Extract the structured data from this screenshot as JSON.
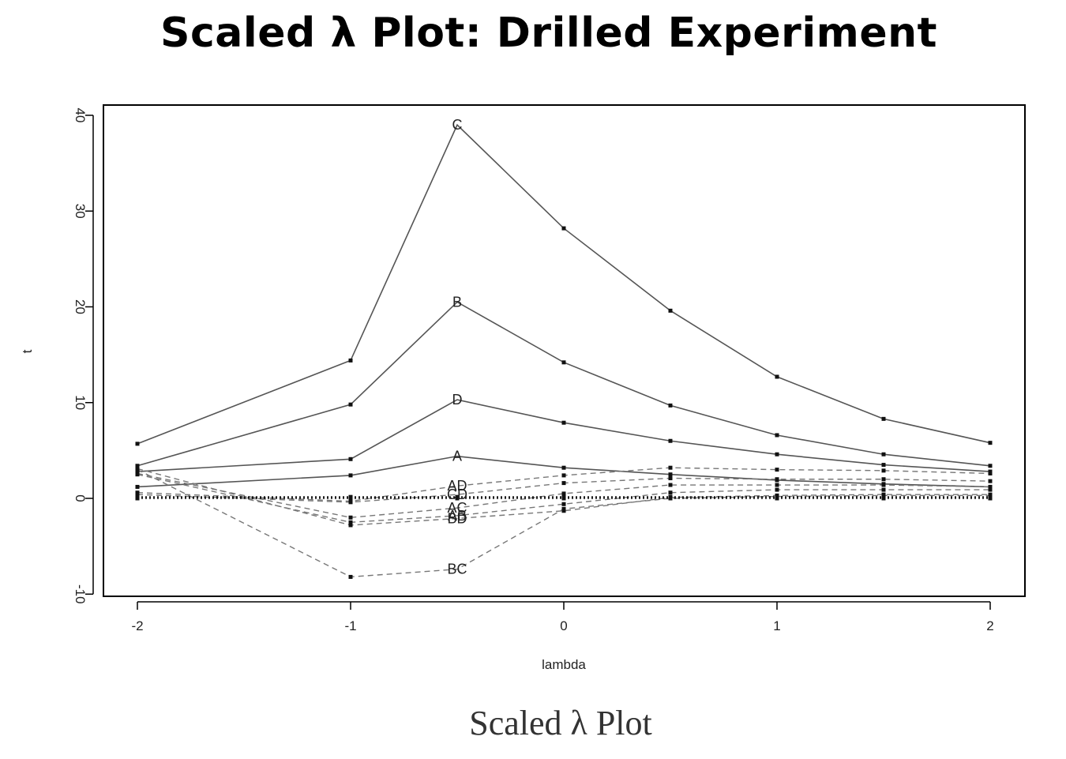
{
  "slide_title": "Scaled λ Plot: Drilled Experiment",
  "caption": "Scaled λ Plot",
  "chart_data": {
    "type": "line",
    "title": "",
    "xlabel": "lambda",
    "ylabel": "t",
    "xlim": [
      -2.15,
      2.15
    ],
    "ylim": [
      -10,
      41
    ],
    "x": [
      -2,
      -1,
      -0.5,
      0,
      0.5,
      1,
      1.5,
      2
    ],
    "x_ticks": [
      "-2",
      "-1",
      "0",
      "1",
      "2"
    ],
    "x_tick_values": [
      -2,
      -1,
      0,
      1,
      2
    ],
    "y_ticks": [
      "-10",
      "0",
      "10",
      "20",
      "30",
      "40"
    ],
    "y_tick_values": [
      -10,
      0,
      10,
      20,
      30,
      40
    ],
    "grid": false,
    "series": [
      {
        "name": "C",
        "label_at": -0.5,
        "style": "solid",
        "values": [
          5.7,
          14.4,
          39.0,
          28.2,
          19.6,
          12.7,
          8.3,
          5.8
        ]
      },
      {
        "name": "B",
        "label_at": -0.5,
        "style": "solid",
        "values": [
          3.4,
          9.8,
          20.5,
          14.2,
          9.7,
          6.6,
          4.6,
          3.4
        ]
      },
      {
        "name": "D",
        "label_at": -0.5,
        "style": "solid",
        "values": [
          2.8,
          4.1,
          10.3,
          7.9,
          6.0,
          4.6,
          3.5,
          2.8
        ]
      },
      {
        "name": "A",
        "label_at": -0.5,
        "style": "solid",
        "values": [
          1.2,
          2.4,
          4.4,
          3.2,
          2.5,
          1.9,
          1.5,
          1.2
        ]
      },
      {
        "name": "AD",
        "label_at": -0.5,
        "style": "dashed",
        "values": [
          0.6,
          -0.3,
          1.3,
          2.4,
          3.2,
          3.0,
          2.9,
          2.6
        ]
      },
      {
        "name": "CD",
        "label_at": -0.5,
        "style": "dashed",
        "values": [
          0.4,
          -0.4,
          0.4,
          1.6,
          2.1,
          2.0,
          2.0,
          1.8
        ]
      },
      {
        "name": "AC",
        "label_at": -0.5,
        "style": "dashed",
        "values": [
          2.6,
          -2.0,
          -1.0,
          0.5,
          1.4,
          1.4,
          1.4,
          1.2
        ]
      },
      {
        "name": "AB",
        "label_at": -0.5,
        "style": "dashed",
        "values": [
          2.5,
          -2.5,
          -1.8,
          -0.6,
          0.6,
          0.9,
          0.9,
          0.9
        ]
      },
      {
        "name": "BD",
        "label_at": -0.5,
        "style": "dashed",
        "values": [
          3.1,
          -2.8,
          -2.1,
          -1.3,
          0.1,
          0.3,
          0.4,
          0.4
        ]
      },
      {
        "name": "BC",
        "label_at": -0.5,
        "style": "dashed",
        "values": [
          3.0,
          -8.2,
          -7.4,
          -1.1,
          0.0,
          0.2,
          0.3,
          0.3
        ]
      },
      {
        "name": "",
        "style": "dotted",
        "values": [
          0.15,
          0.15,
          0.15,
          0.15,
          0.15,
          0.15,
          0.15,
          0.15
        ]
      },
      {
        "name": "",
        "style": "dotted",
        "values": [
          0.0,
          0.0,
          0.0,
          0.0,
          0.0,
          0.0,
          0.0,
          0.0
        ]
      }
    ]
  }
}
